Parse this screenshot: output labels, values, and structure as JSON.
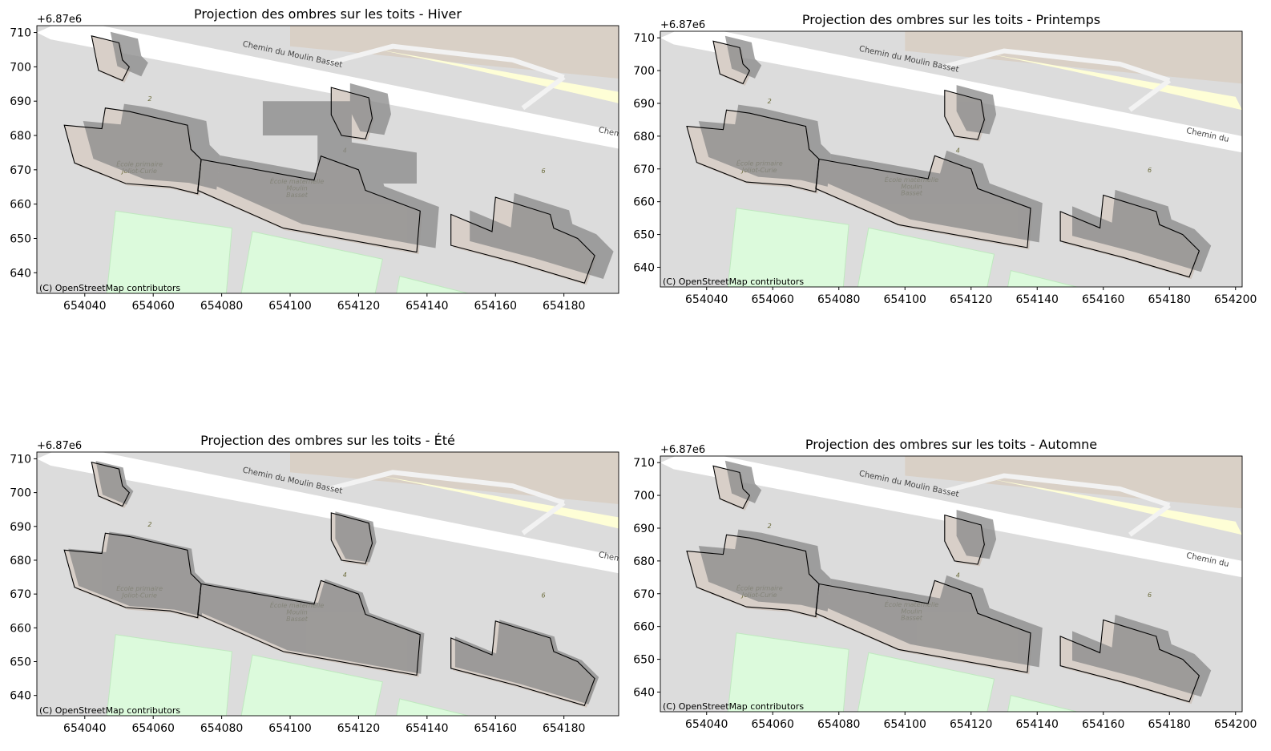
{
  "figure": {
    "background": "#ffffff"
  },
  "colors": {
    "map_ground": "#dcdcdc",
    "green_area": "#dcfadc",
    "green_area_edge": "#bfe8bf",
    "road": "#ffffff",
    "yellow_area": "#fefed6",
    "beige_area": "#d9d0c6",
    "building_fill": "#d8cfc8",
    "building_edge": "#000000",
    "shadow": "#8c8c8c",
    "map_label": "#6b6b3a",
    "road_label": "#444444"
  },
  "map_labels": {
    "road": "Chemin du Moulin Basset",
    "road_short": "Chem",
    "road_mid": "Chemin du",
    "school_primary_1": "École primaire",
    "school_primary_2": "Joliot-Curie",
    "school_maternelle_1": "École maternelle",
    "school_maternelle_2": "Moulin",
    "school_maternelle_3": "Basset",
    "number_2": "2",
    "number_4": "4",
    "number_6": "6"
  },
  "attribution": "(C) OpenStreetMap contributors",
  "chart_data": [
    {
      "type": "map",
      "title": "Projection des ombres sur les toits - Hiver",
      "offset_label": "+6.87e6",
      "xlim": [
        654026,
        654196
      ],
      "ylim": [
        6870634,
        6870712
      ],
      "xticks": [
        654040,
        654060,
        654080,
        654100,
        654120,
        654140,
        654160,
        654180
      ],
      "yticks": [
        640,
        650,
        660,
        670,
        680,
        690,
        700,
        710
      ],
      "shadow_direction": [
        0.55,
        0.12
      ],
      "shadow_scale": 1.25,
      "shadows": [
        {
          "x": [
            654092,
            654118,
            654118,
            654137,
            654137,
            654108,
            654108,
            654092
          ],
          "y": [
            6870690,
            6870690,
            6870678,
            6870675,
            6870666,
            6870666,
            6870680,
            6870680
          ]
        }
      ]
    },
    {
      "type": "map",
      "title": "Projection des ombres sur les toits - Printemps",
      "offset_label": "+6.87e6",
      "xlim": [
        654026,
        654202
      ],
      "ylim": [
        6870634,
        6870712
      ],
      "xticks": [
        654040,
        654060,
        654080,
        654100,
        654120,
        654140,
        654160,
        654180,
        654200
      ],
      "yticks": [
        640,
        650,
        660,
        670,
        680,
        690,
        700,
        710
      ],
      "shadow_direction": [
        0.45,
        0.2
      ],
      "shadow_scale": 1.0,
      "shadows": []
    },
    {
      "type": "map",
      "title": "Projection des ombres sur les toits - Été",
      "offset_label": "+6.87e6",
      "xlim": [
        654026,
        654196
      ],
      "ylim": [
        6870634,
        6870712
      ],
      "xticks": [
        654040,
        654060,
        654080,
        654100,
        654120,
        654140,
        654160,
        654180
      ],
      "yticks": [
        640,
        650,
        660,
        670,
        680,
        690,
        700,
        710
      ],
      "shadow_direction": [
        0.15,
        0.05
      ],
      "shadow_scale": 1.0,
      "shadows": []
    },
    {
      "type": "map",
      "title": "Projection des ombres sur les toits - Automne",
      "offset_label": "+6.87e6",
      "xlim": [
        654026,
        654202
      ],
      "ylim": [
        6870634,
        6870712
      ],
      "xticks": [
        654040,
        654060,
        654080,
        654100,
        654120,
        654140,
        654160,
        654180,
        654200
      ],
      "yticks": [
        640,
        650,
        660,
        670,
        680,
        690,
        700,
        710
      ],
      "shadow_direction": [
        0.45,
        0.2
      ],
      "shadow_scale": 1.0,
      "shadows": []
    }
  ],
  "buildings": [
    {
      "name": "small-building",
      "x": [
        654042,
        654050,
        654051,
        654053,
        654051,
        654044
      ],
      "y": [
        6870709,
        6870707,
        6870702,
        6870700,
        6870696,
        6870699
      ]
    },
    {
      "name": "ecole-primaire",
      "x": [
        654034,
        654045,
        654046,
        654053,
        654070,
        654071,
        654074,
        654073,
        654065,
        654052,
        654037
      ],
      "y": [
        6870683,
        6870682,
        6870688,
        6870687,
        6870683,
        6870676,
        6870673,
        6870663,
        6870665,
        6870666,
        6870672
      ]
    },
    {
      "name": "ecole-maternelle",
      "x": [
        654074,
        654107,
        654109,
        654120,
        654122,
        654138,
        654137,
        654098,
        654073
      ],
      "y": [
        6870673,
        6870667,
        6870674,
        6870670,
        6870664,
        6870658,
        6870646,
        6870653,
        6870664
      ]
    },
    {
      "name": "building-north",
      "x": [
        654112,
        654123,
        654124,
        654122,
        654115,
        654112
      ],
      "y": [
        6870694,
        6870691,
        6870685,
        6870679,
        6870680,
        6870686
      ]
    },
    {
      "name": "building-east",
      "x": [
        654147,
        654159,
        654160,
        654176,
        654177,
        654184,
        654189,
        654186,
        654166,
        654147
      ],
      "y": [
        6870657,
        6870652,
        6870662,
        6870657,
        6870653,
        6870650,
        6870645,
        6870637,
        6870643,
        6870648
      ]
    }
  ]
}
